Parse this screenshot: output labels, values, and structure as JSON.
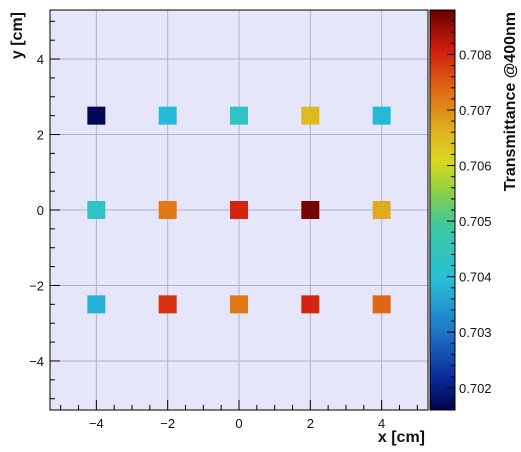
{
  "chart_data": {
    "type": "heatmap",
    "xlabel": "x [cm]",
    "ylabel": "y [cm]",
    "xlim": [
      -5.3,
      5.3
    ],
    "ylim": [
      -5.3,
      5.3
    ],
    "xticks": [
      -4,
      -2,
      0,
      2,
      4
    ],
    "yticks": [
      -4,
      -2,
      0,
      2,
      4
    ],
    "xtick_labels": [
      "−4",
      "−2",
      "0",
      "2",
      "4"
    ],
    "ytick_labels": [
      "−4",
      "−2",
      "0",
      "2",
      "4"
    ],
    "grid": true,
    "background_color": "#e6e6fa",
    "colorbar": {
      "label": "Transmittance @400nm",
      "range": [
        0.7016,
        0.7088
      ],
      "ticks": [
        0.702,
        0.703,
        0.704,
        0.705,
        0.706,
        0.707,
        0.708
      ],
      "tick_labels": [
        "0.702",
        "0.703",
        "0.704",
        "0.705",
        "0.706",
        "0.707",
        "0.708"
      ],
      "colormap": "rainbow (dark blue → cyan → green → yellow → orange → red → dark red)"
    },
    "points": [
      {
        "x": -4,
        "y": 2.5,
        "value": 0.7017
      },
      {
        "x": -2,
        "y": 2.5,
        "value": 0.7039
      },
      {
        "x": 0,
        "y": 2.5,
        "value": 0.7043
      },
      {
        "x": 2,
        "y": 2.5,
        "value": 0.7065
      },
      {
        "x": 4,
        "y": 2.5,
        "value": 0.7039
      },
      {
        "x": -4,
        "y": 0,
        "value": 0.7043
      },
      {
        "x": -2,
        "y": 0,
        "value": 0.7072
      },
      {
        "x": 0,
        "y": 0,
        "value": 0.708
      },
      {
        "x": 2,
        "y": 0,
        "value": 0.7087
      },
      {
        "x": 4,
        "y": 0,
        "value": 0.7067
      },
      {
        "x": -4,
        "y": -2.5,
        "value": 0.7038
      },
      {
        "x": -2,
        "y": -2.5,
        "value": 0.7079
      },
      {
        "x": 0,
        "y": -2.5,
        "value": 0.7072
      },
      {
        "x": 2,
        "y": -2.5,
        "value": 0.708
      },
      {
        "x": 4,
        "y": -2.5,
        "value": 0.7074
      }
    ]
  }
}
